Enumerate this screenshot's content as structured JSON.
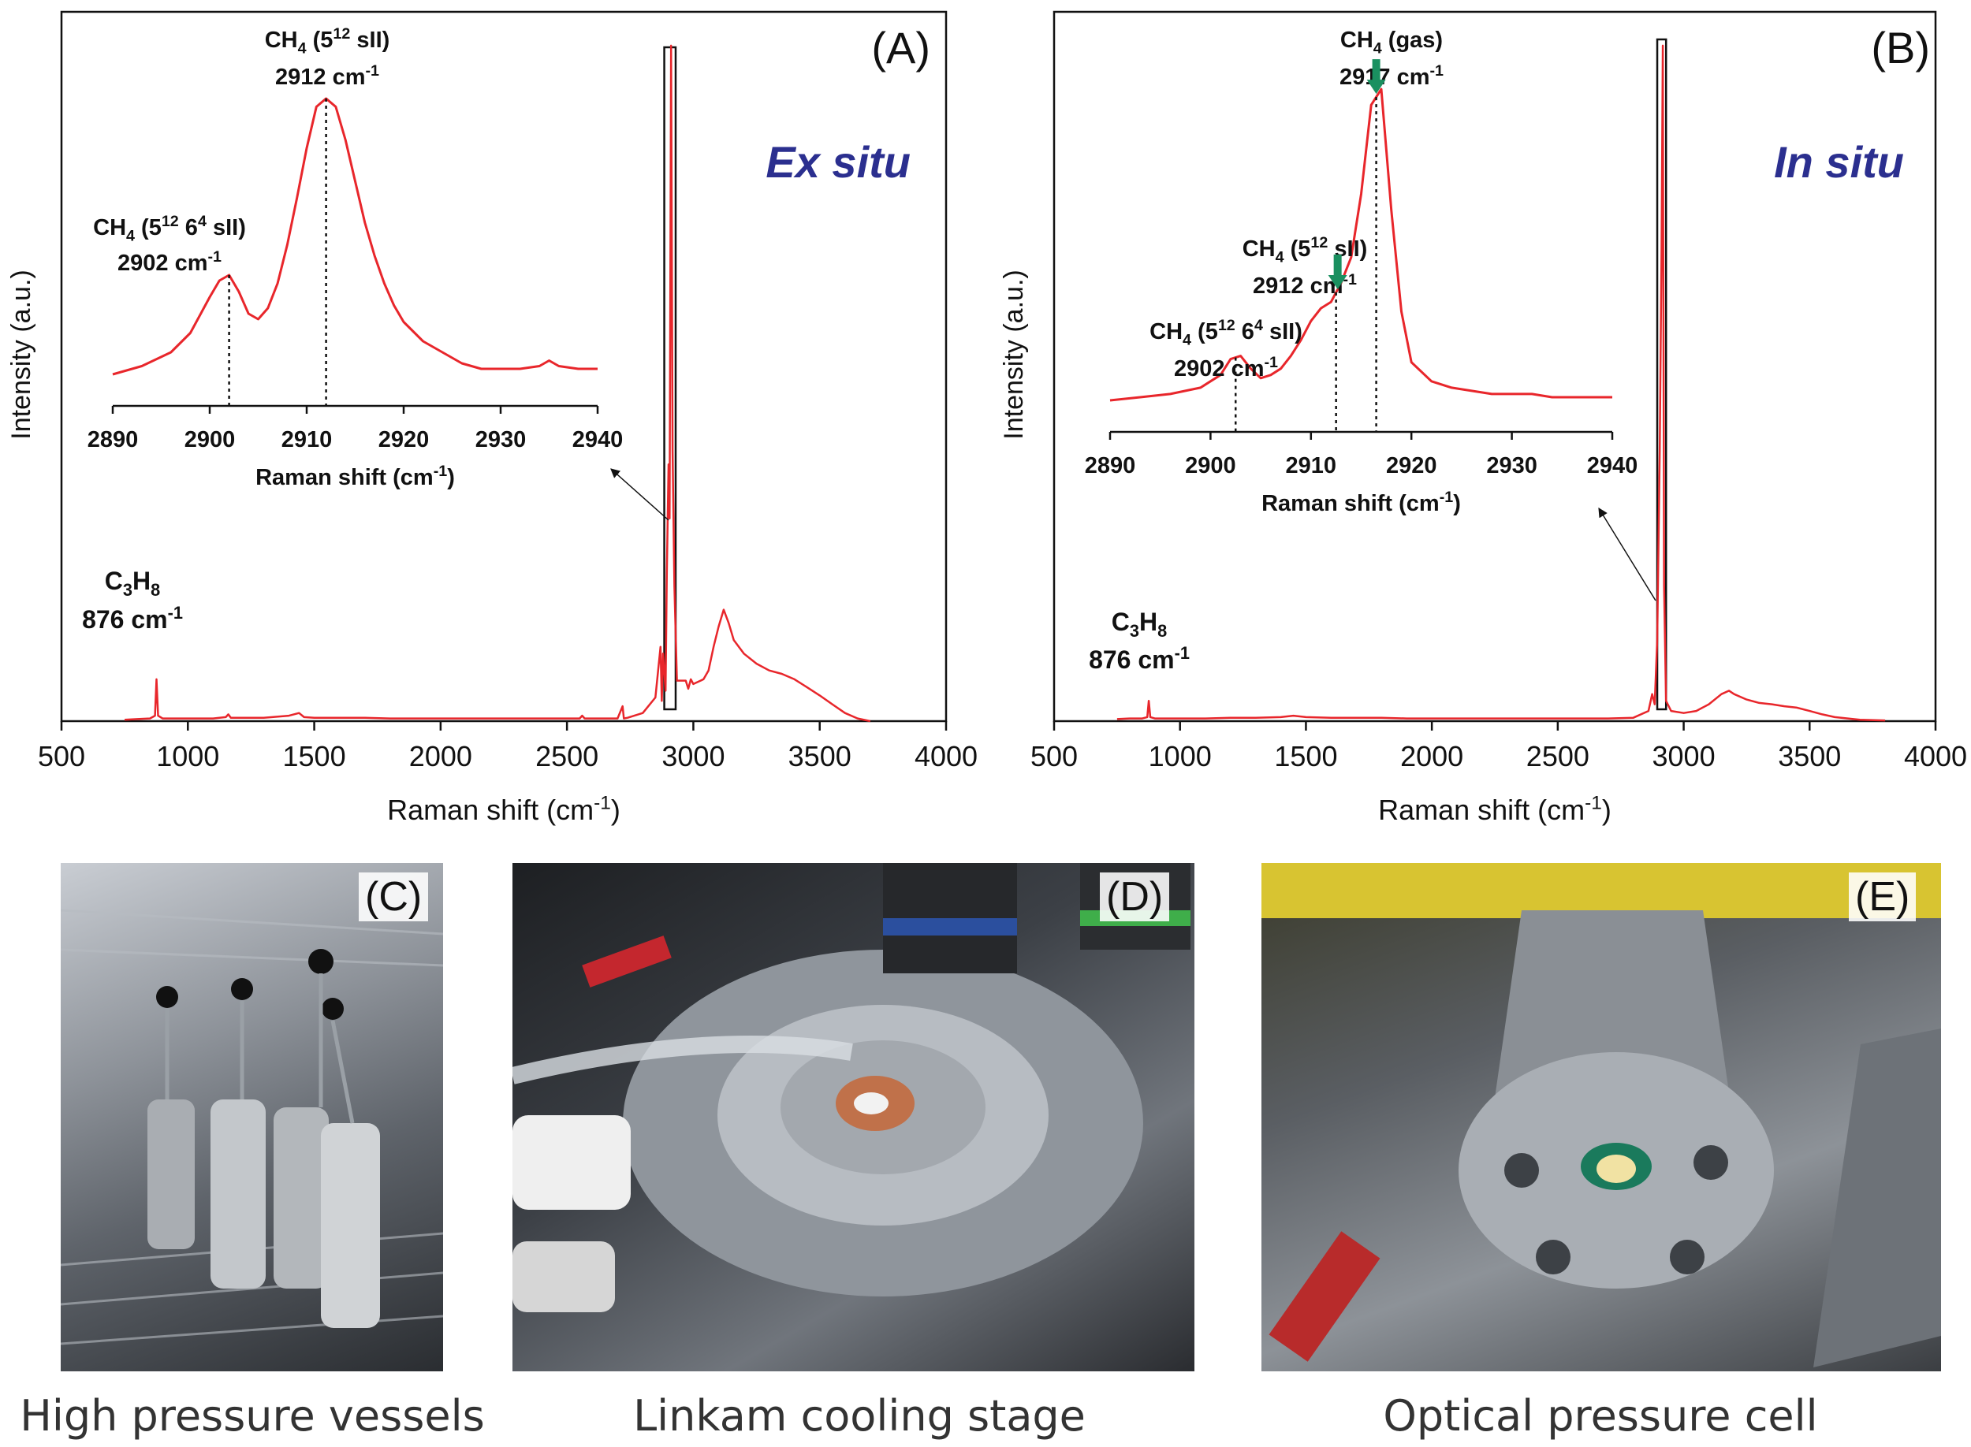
{
  "chart_data": [
    {
      "id": "A",
      "type": "line",
      "panel_label": "(A)",
      "mode_label": "Ex situ",
      "xlabel": "Raman shift (cm-1)",
      "ylabel": "Intensity (a.u.)",
      "xlim": [
        500,
        4000
      ],
      "xticks": [
        500,
        1000,
        1500,
        2000,
        2500,
        3000,
        3500,
        4000
      ],
      "series": [
        {
          "color": "#e8262b",
          "x": [
            750,
            800,
            850,
            870,
            876,
            882,
            900,
            950,
            1000,
            1050,
            1100,
            1150,
            1160,
            1170,
            1200,
            1300,
            1400,
            1440,
            1460,
            1500,
            1600,
            1700,
            1800,
            1900,
            2000,
            2100,
            2200,
            2300,
            2400,
            2500,
            2550,
            2560,
            2570,
            2600,
            2700,
            2720,
            2725,
            2740,
            2800,
            2850,
            2870,
            2875,
            2880,
            2890,
            2895,
            2902,
            2906,
            2912,
            2918,
            2925,
            2935,
            2940,
            2950,
            2970,
            2980,
            2990,
            3000,
            3040,
            3060,
            3080,
            3100,
            3120,
            3140,
            3160,
            3200,
            3250,
            3300,
            3350,
            3400,
            3450,
            3500,
            3550,
            3600,
            3650,
            3700
          ],
          "y": [
            2,
            3,
            4,
            8,
            62,
            8,
            4,
            4,
            4,
            4,
            4,
            6,
            10,
            5,
            5,
            5,
            8,
            12,
            6,
            5,
            5,
            5,
            4,
            4,
            4,
            4,
            4,
            4,
            4,
            4,
            4,
            8,
            4,
            4,
            4,
            22,
            4,
            5,
            12,
            35,
            110,
            30,
            100,
            45,
            220,
            380,
            300,
            1000,
            400,
            200,
            60,
            60,
            60,
            60,
            48,
            62,
            55,
            62,
            75,
            110,
            140,
            165,
            145,
            120,
            100,
            85,
            75,
            70,
            62,
            50,
            38,
            25,
            12,
            4,
            0
          ]
        }
      ],
      "annotations": [
        {
          "text": "C3H8",
          "value": "876 cm-1"
        }
      ],
      "inset": {
        "xlabel": "Raman shift (cm-1)",
        "xlim": [
          2890,
          2940
        ],
        "xticks": [
          2890,
          2900,
          2910,
          2920,
          2930,
          2940
        ],
        "series": [
          {
            "color": "#e8262b",
            "x": [
              2890,
              2893,
              2896,
              2898,
              2900,
              2901,
              2902,
              2903,
              2904,
              2905,
              2906,
              2907,
              2908,
              2909,
              2910,
              2911,
              2912,
              2913,
              2914,
              2915,
              2916,
              2917,
              2918,
              2919,
              2920,
              2922,
              2924,
              2926,
              2928,
              2930,
              2932,
              2934,
              2935,
              2936,
              2938,
              2940
            ],
            "y": [
              0.0,
              0.03,
              0.08,
              0.15,
              0.28,
              0.34,
              0.36,
              0.3,
              0.22,
              0.2,
              0.24,
              0.33,
              0.47,
              0.64,
              0.82,
              0.97,
              1.0,
              0.97,
              0.85,
              0.7,
              0.55,
              0.43,
              0.33,
              0.25,
              0.19,
              0.12,
              0.08,
              0.04,
              0.02,
              0.02,
              0.02,
              0.03,
              0.05,
              0.03,
              0.02,
              0.02
            ]
          }
        ],
        "peaks": [
          {
            "x": 2902,
            "name": "CH4 (5^12 6^4 sII)",
            "value": "2902 cm-1"
          },
          {
            "x": 2912,
            "name": "CH4 (5^12 sII)",
            "value": "2912 cm-1"
          }
        ]
      }
    },
    {
      "id": "B",
      "type": "line",
      "panel_label": "(B)",
      "mode_label": "In situ",
      "xlabel": "Raman shift (cm-1)",
      "ylabel": "Intensity (a.u.)",
      "xlim": [
        500,
        4000
      ],
      "xticks": [
        500,
        1000,
        1500,
        2000,
        2500,
        3000,
        3500,
        4000
      ],
      "series": [
        {
          "color": "#e8262b",
          "x": [
            750,
            800,
            850,
            870,
            876,
            882,
            900,
            1000,
            1100,
            1200,
            1300,
            1400,
            1450,
            1500,
            1600,
            1700,
            1800,
            1900,
            2000,
            2100,
            2200,
            2300,
            2400,
            2500,
            2600,
            2700,
            2800,
            2860,
            2875,
            2885,
            2895,
            2905,
            2912,
            2917,
            2922,
            2930,
            2950,
            3000,
            3050,
            3100,
            3150,
            3180,
            3200,
            3250,
            3300,
            3350,
            3400,
            3450,
            3500,
            3550,
            3600,
            3700,
            3800
          ],
          "y": [
            3,
            4,
            4,
            6,
            30,
            6,
            4,
            4,
            4,
            5,
            5,
            6,
            8,
            6,
            5,
            5,
            5,
            4,
            4,
            4,
            4,
            4,
            4,
            4,
            4,
            4,
            5,
            15,
            40,
            25,
            120,
            400,
            700,
            1000,
            200,
            30,
            15,
            12,
            15,
            25,
            40,
            45,
            40,
            32,
            27,
            25,
            22,
            20,
            15,
            10,
            6,
            2,
            1
          ]
        }
      ],
      "annotations": [
        {
          "text": "C3H8",
          "value": "876 cm-1"
        }
      ],
      "inset": {
        "xlabel": "Raman shift (cm-1)",
        "xlim": [
          2890,
          2940
        ],
        "xticks": [
          2890,
          2900,
          2910,
          2920,
          2930,
          2940
        ],
        "series": [
          {
            "color": "#e8262b",
            "x": [
              2890,
              2893,
              2896,
              2899,
              2900,
              2901,
              2902,
              2903,
              2904,
              2905,
              2906,
              2907,
              2908,
              2909,
              2910,
              2911,
              2912,
              2913,
              2914,
              2915,
              2916,
              2917,
              2918,
              2919,
              2920,
              2922,
              2924,
              2926,
              2928,
              2930,
              2932,
              2934,
              2936,
              2938,
              2940
            ],
            "y": [
              0.0,
              0.01,
              0.02,
              0.04,
              0.06,
              0.08,
              0.13,
              0.14,
              0.1,
              0.07,
              0.08,
              0.1,
              0.14,
              0.19,
              0.25,
              0.29,
              0.31,
              0.37,
              0.45,
              0.65,
              0.93,
              0.98,
              0.6,
              0.28,
              0.12,
              0.06,
              0.04,
              0.03,
              0.02,
              0.02,
              0.02,
              0.01,
              0.01,
              0.01,
              0.01
            ]
          }
        ],
        "peaks": [
          {
            "x": 2902.5,
            "name": "CH4 (5^12 6^4 sII)",
            "value": "2902 cm-1"
          },
          {
            "x": 2912.5,
            "name": "CH4 (5^12 sII)",
            "value": "2912 cm-1"
          },
          {
            "x": 2916.5,
            "name": "CH4 (gas)",
            "value": "2917 cm-1"
          }
        ]
      }
    }
  ],
  "photos": [
    {
      "label": "(C)",
      "caption": "High pressure vessels"
    },
    {
      "label": "(D)",
      "caption": "Linkam cooling stage"
    },
    {
      "label": "(E)",
      "caption": "Optical pressure cell"
    }
  ],
  "colors": {
    "spectrum": "#e8262b",
    "mode_label": "#2b2f8f",
    "peak_arrow": "#1a9060",
    "axis": "#111111"
  }
}
